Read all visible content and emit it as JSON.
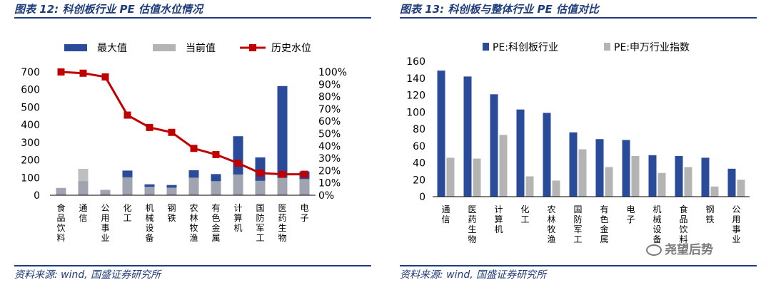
{
  "left": {
    "title": "图表 12: 科创板行业 PE 估值水位情况",
    "source": "资料来源: wind, 国盛证券研究所"
  },
  "right": {
    "title": "图表 13: 科创板与整体行业 PE 估值对比",
    "source": "资料来源: wind, 国盛证券研究所"
  },
  "watermark": "尧望后势",
  "colors": {
    "blue": "#2a4a9a",
    "gray": "#b4b4b4",
    "red": "#c00000",
    "darkblue": "#1f3d7a"
  },
  "chart_data": [
    {
      "type": "bar",
      "categories": [
        "食品饮料",
        "通信",
        "公用事业",
        "化工",
        "机械设备",
        "钢铁",
        "农林牧渔",
        "有色金属",
        "计算机",
        "国防军工",
        "医药生物",
        "电子"
      ],
      "series": [
        {
          "name": "最大值",
          "values": [
            40,
            80,
            30,
            140,
            62,
            58,
            142,
            120,
            335,
            215,
            620,
            135
          ]
        },
        {
          "name": "当前值",
          "values": [
            42,
            150,
            30,
            102,
            48,
            43,
            100,
            80,
            118,
            82,
            99,
            92
          ]
        },
        {
          "name": "历史水位",
          "axis": "right",
          "values": [
            100,
            99,
            96,
            65,
            55,
            51,
            38,
            33,
            26,
            18,
            17,
            17
          ]
        }
      ],
      "ylim_left": [
        0,
        700
      ],
      "yticks_left": [
        "0",
        "100",
        "200",
        "300",
        "400",
        "500",
        "600",
        "700"
      ],
      "ylim_right": [
        0,
        100
      ],
      "yticks_right": [
        "0%",
        "10%",
        "20%",
        "30%",
        "40%",
        "50%",
        "60%",
        "70%",
        "80%",
        "90%",
        "100%"
      ],
      "legend_position": "top"
    },
    {
      "type": "bar",
      "categories": [
        "通信",
        "医药生物",
        "计算机",
        "化工",
        "农林牧渔",
        "国防军工",
        "有色金属",
        "电子",
        "机械设备",
        "食品饮料",
        "钢铁",
        "公用事业"
      ],
      "series": [
        {
          "name": "PE:科创板行业",
          "values": [
            149,
            142,
            121,
            103,
            99,
            76,
            68,
            67,
            49,
            48,
            46,
            33
          ]
        },
        {
          "name": "PE:申万行业指数",
          "values": [
            46,
            45,
            73,
            24,
            19,
            56,
            35,
            48,
            28,
            35,
            12,
            20
          ]
        }
      ],
      "ylim": [
        0,
        160
      ],
      "yticks": [
        "0",
        "20",
        "40",
        "60",
        "80",
        "100",
        "120",
        "140",
        "160"
      ],
      "legend_position": "top"
    }
  ]
}
